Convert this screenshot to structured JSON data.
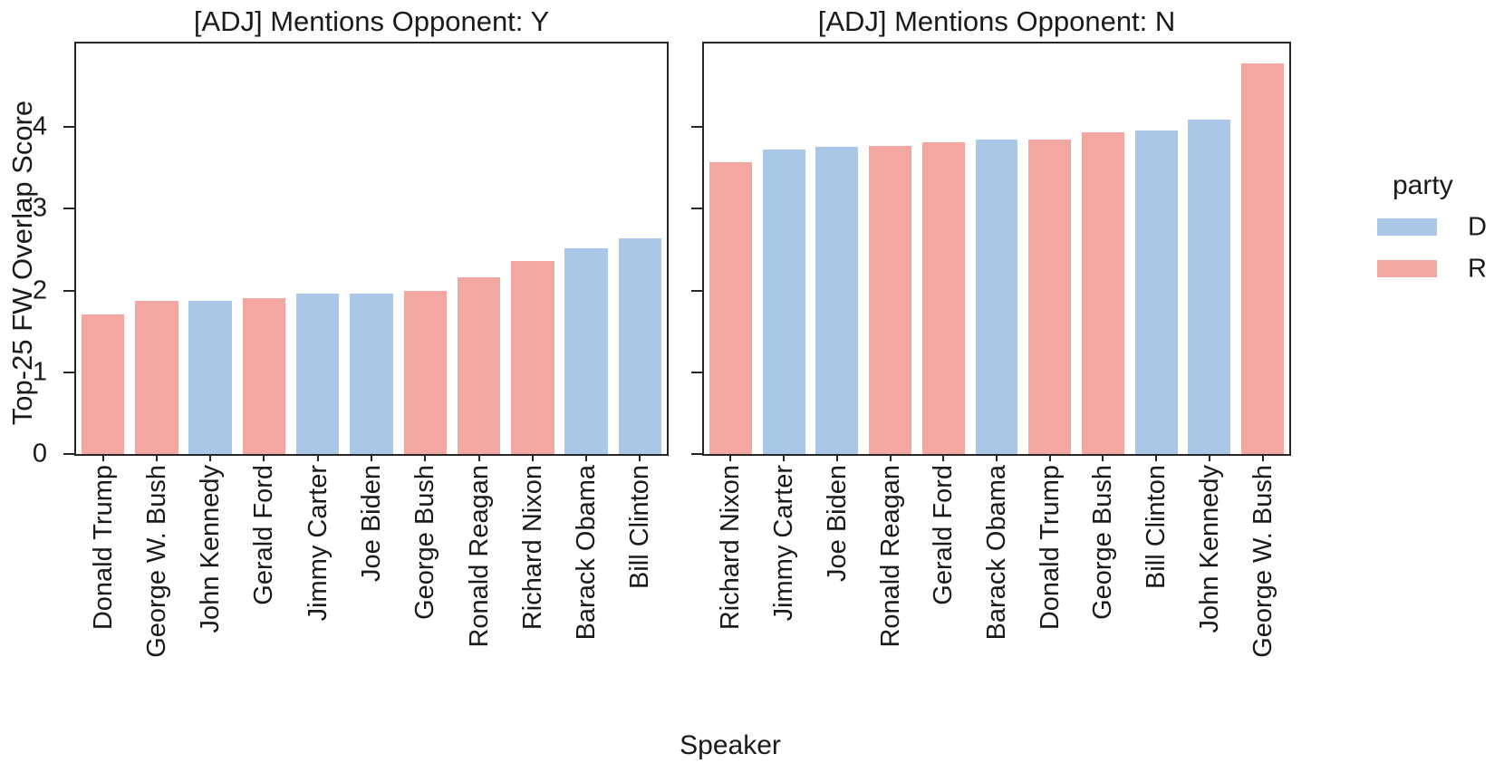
{
  "figure": {
    "ylabel": "Top-25 FW Overlap Score",
    "xlabel": "Speaker"
  },
  "legend": {
    "title": "party",
    "position": "right",
    "entries": [
      {
        "label": "D",
        "color": "#abc7e8"
      },
      {
        "label": "R",
        "color": "#f2a7a2"
      }
    ]
  },
  "colors": {
    "axis": "#262626",
    "text": "#1a1a1a",
    "democrat_bar": "#abc7e8",
    "republican_bar": "#f2a7a2"
  },
  "chart_data": [
    {
      "type": "bar",
      "title": "[ADJ] Mentions Opponent: Y",
      "xlabel": "Speaker",
      "ylabel": "Top-25 FW Overlap Score",
      "ylim": [
        0,
        5.02
      ],
      "yticks": [
        0,
        1,
        2,
        3,
        4
      ],
      "grid": false,
      "show_ytick_labels": true,
      "categories": [
        "Donald Trump",
        "George W. Bush",
        "John Kennedy",
        "Gerald Ford",
        "Jimmy Carter",
        "Joe Biden",
        "George Bush",
        "Ronald Reagan",
        "Richard Nixon",
        "Barack Obama",
        "Bill Clinton"
      ],
      "values": [
        1.71,
        1.87,
        1.87,
        1.91,
        1.96,
        1.96,
        2.0,
        2.16,
        2.36,
        2.52,
        2.64
      ],
      "party": [
        "R",
        "R",
        "D",
        "R",
        "D",
        "D",
        "R",
        "R",
        "R",
        "D",
        "D"
      ]
    },
    {
      "type": "bar",
      "title": "[ADJ] Mentions Opponent: N",
      "xlabel": "Speaker",
      "ylabel": "Top-25 FW Overlap Score",
      "ylim": [
        0,
        5.02
      ],
      "yticks": [
        0,
        1,
        2,
        3,
        4
      ],
      "grid": false,
      "show_ytick_labels": false,
      "categories": [
        "Richard Nixon",
        "Jimmy Carter",
        "Joe Biden",
        "Ronald Reagan",
        "Gerald Ford",
        "Barack Obama",
        "Donald Trump",
        "George Bush",
        "Bill Clinton",
        "John Kennedy",
        "George W. Bush"
      ],
      "values": [
        3.57,
        3.72,
        3.76,
        3.77,
        3.81,
        3.85,
        3.85,
        3.93,
        3.96,
        4.09,
        4.78
      ],
      "party": [
        "R",
        "D",
        "D",
        "R",
        "R",
        "D",
        "R",
        "R",
        "D",
        "D",
        "R"
      ]
    }
  ]
}
